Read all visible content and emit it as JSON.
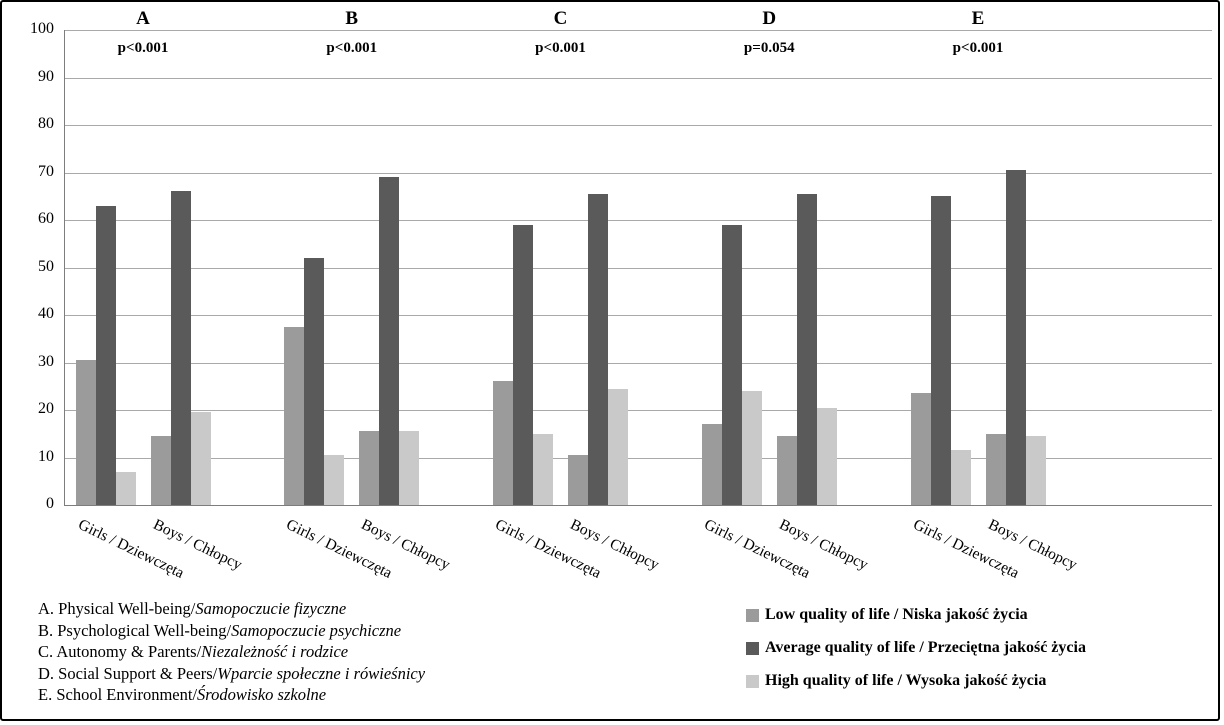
{
  "chart_data": {
    "type": "bar",
    "title": "",
    "ylim": [
      0,
      100
    ],
    "yticks": [
      0,
      10,
      20,
      30,
      40,
      50,
      60,
      70,
      80,
      90,
      100
    ],
    "grid": "horizontal",
    "legend_position": "bottom-right",
    "cluster_labels": [
      "Girls / Dziewczęta",
      "Boys / Chłopcy"
    ],
    "groups": [
      {
        "letter": "A",
        "p": "p<0.001"
      },
      {
        "letter": "B",
        "p": "p<0.001"
      },
      {
        "letter": "C",
        "p": "p<0.001"
      },
      {
        "letter": "D",
        "p": "p=0.054"
      },
      {
        "letter": "E",
        "p": "p<0.001"
      }
    ],
    "series": [
      {
        "key": "low",
        "name": "Low quality of life / Niska jakość życia",
        "color": "#9b9b9b",
        "values": [
          [
            30.5,
            14.5
          ],
          [
            37.5,
            15.5
          ],
          [
            26,
            10.5
          ],
          [
            17,
            14.5
          ],
          [
            23.5,
            15
          ]
        ]
      },
      {
        "key": "average",
        "name": "Average quality of life / Przeciętna jakość życia",
        "color": "#5a5a5a",
        "values": [
          [
            63,
            66
          ],
          [
            52,
            69
          ],
          [
            59,
            65.5
          ],
          [
            59,
            65.5
          ],
          [
            65,
            70.5
          ]
        ]
      },
      {
        "key": "high",
        "name": "High quality of life / Wysoka jakość życia",
        "color": "#c9c9c9",
        "values": [
          [
            7,
            19.5
          ],
          [
            10.5,
            15.5
          ],
          [
            15,
            24.5
          ],
          [
            24,
            20.5
          ],
          [
            11.5,
            14.5
          ]
        ]
      }
    ],
    "footnotes": [
      {
        "text": "A. Physical Well-being/",
        "italic": "Samopoczucie fizyczne"
      },
      {
        "text": "B. Psychological Well-being/",
        "italic": "Samopoczucie psychiczne"
      },
      {
        "text": "C. Autonomy & Parents/",
        "italic": "Niezależność i rodzice"
      },
      {
        "text": "D. Social Support & Peers/",
        "italic": "Wparcie społeczne i rówieśnicy"
      },
      {
        "text": "E. School Environment/",
        "italic": "Środowisko szkolne"
      }
    ]
  }
}
